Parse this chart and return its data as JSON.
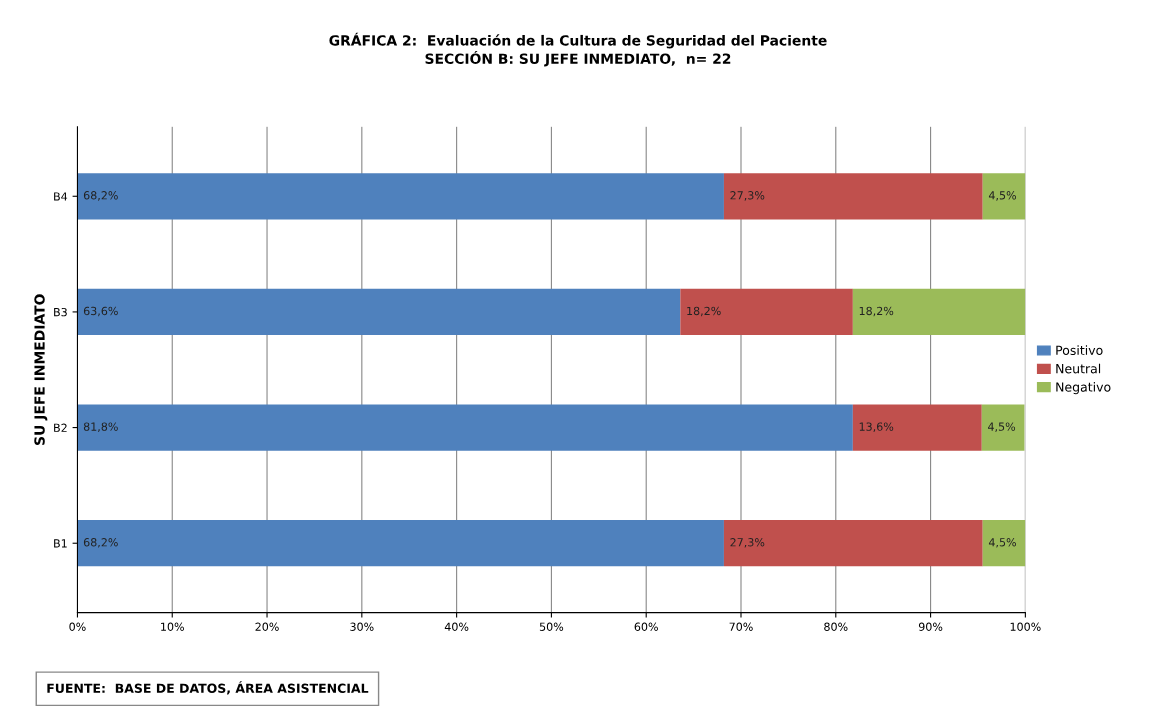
{
  "chart_data": {
    "type": "bar",
    "orientation": "horizontal",
    "stacked": true,
    "title": "GRÁFICA 2:  Evaluación de la Cultura de Seguridad del Paciente\nSECCIÓN B: SU JEFE INMEDIATO,  n= 22",
    "ylabel": "SU JEFE INMEDIATO",
    "categories": [
      "B4",
      "B3",
      "B2",
      "B1"
    ],
    "series": [
      {
        "name": "Positivo",
        "color": "#4f81bd",
        "values": [
          68.2,
          63.6,
          81.8,
          68.2
        ],
        "value_labels": [
          "68,2%",
          "63,6%",
          "81,8%",
          "68,2%"
        ]
      },
      {
        "name": "Neutral",
        "color": "#c0504d",
        "values": [
          27.3,
          18.2,
          13.6,
          27.3
        ],
        "value_labels": [
          "27,3%",
          "18,2%",
          "13,6%",
          "27,3%"
        ]
      },
      {
        "name": "Negativo",
        "color": "#9bbb59",
        "values": [
          4.5,
          18.2,
          4.5,
          4.5
        ],
        "value_labels": [
          "4,5%",
          "18,2%",
          "4,5%",
          "4,5%"
        ]
      }
    ],
    "xlim": [
      0,
      100
    ],
    "xticks": [
      {
        "value": 0,
        "label": "0%"
      },
      {
        "value": 10,
        "label": "10%"
      },
      {
        "value": 20,
        "label": "20%"
      },
      {
        "value": 30,
        "label": "30%"
      },
      {
        "value": 40,
        "label": "40%"
      },
      {
        "value": 50,
        "label": "50%"
      },
      {
        "value": 60,
        "label": "60%"
      },
      {
        "value": 70,
        "label": "70%"
      },
      {
        "value": 80,
        "label": "80%"
      },
      {
        "value": 90,
        "label": "90%"
      },
      {
        "value": 100,
        "label": "100%"
      }
    ],
    "grid": "x",
    "legend": "right",
    "annotations": [
      "FUENTE:  BASE DE DATOS, ÁREA ASISTENCIAL"
    ]
  }
}
